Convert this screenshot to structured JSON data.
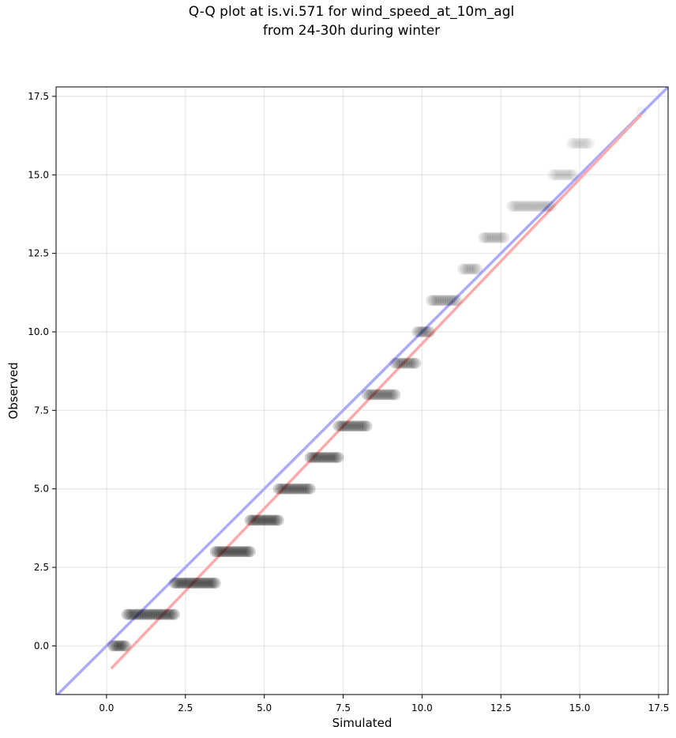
{
  "chart_data": {
    "type": "scatter",
    "title": [
      "Q-Q plot at is.vi.571 for wind_speed_at_10m_agl",
      "from 24-30h during winter"
    ],
    "xlabel": "Simulated",
    "ylabel": "Observed",
    "xlim": [
      -1.6,
      17.8
    ],
    "ylim": [
      -1.55,
      17.8
    ],
    "xticks": [
      0.0,
      2.5,
      5.0,
      7.5,
      10.0,
      12.5,
      15.0,
      17.5
    ],
    "yticks": [
      0.0,
      2.5,
      5.0,
      7.5,
      10.0,
      12.5,
      15.0,
      17.5
    ],
    "tick_labels": [
      "0.0",
      "2.5",
      "5.0",
      "7.5",
      "10.0",
      "12.5",
      "15.0",
      "17.5"
    ],
    "grid": true,
    "point_color": "#000000",
    "clusters": [
      {
        "observed": 0,
        "sim_min": 0.2,
        "sim_max": 0.6,
        "opacity": 0.55
      },
      {
        "observed": 1,
        "sim_min": 0.65,
        "sim_max": 2.15,
        "opacity": 0.55
      },
      {
        "observed": 2,
        "sim_min": 2.15,
        "sim_max": 3.45,
        "opacity": 0.55
      },
      {
        "observed": 3,
        "sim_min": 3.45,
        "sim_max": 4.55,
        "opacity": 0.55
      },
      {
        "observed": 4,
        "sim_min": 4.55,
        "sim_max": 5.45,
        "opacity": 0.55
      },
      {
        "observed": 5,
        "sim_min": 5.45,
        "sim_max": 6.45,
        "opacity": 0.5
      },
      {
        "observed": 6,
        "sim_min": 6.45,
        "sim_max": 7.35,
        "opacity": 0.5
      },
      {
        "observed": 7,
        "sim_min": 7.35,
        "sim_max": 8.25,
        "opacity": 0.45
      },
      {
        "observed": 8,
        "sim_min": 8.25,
        "sim_max": 9.15,
        "opacity": 0.4
      },
      {
        "observed": 9,
        "sim_min": 9.15,
        "sim_max": 9.8,
        "opacity": 0.4
      },
      {
        "observed": 10,
        "sim_min": 9.85,
        "sim_max": 10.25,
        "opacity": 0.35
      },
      {
        "observed": 11,
        "sim_min": 10.3,
        "sim_max": 11.1,
        "opacity": 0.3
      },
      {
        "observed": 12,
        "sim_min": 11.3,
        "sim_max": 11.75,
        "opacity": 0.25
      },
      {
        "observed": 13,
        "sim_min": 11.95,
        "sim_max": 12.6,
        "opacity": 0.22
      },
      {
        "observed": 14,
        "sim_min": 12.85,
        "sim_max": 14.1,
        "opacity": 0.18
      },
      {
        "observed": 15,
        "sim_min": 14.15,
        "sim_max": 14.8,
        "opacity": 0.15
      },
      {
        "observed": 16,
        "sim_min": 14.75,
        "sim_max": 15.3,
        "opacity": 0.12
      },
      {
        "observed": 17,
        "sim_min": 16.95,
        "sim_max": 16.95,
        "opacity": 0.12
      }
    ],
    "lines": [
      {
        "name": "identity",
        "color": "#aaaaff",
        "x": [
          -1.6,
          17.8
        ],
        "y": [
          -1.6,
          17.8
        ]
      },
      {
        "name": "fit",
        "color": "#ffaaaa",
        "x": [
          0.15,
          16.95
        ],
        "y": [
          -0.72,
          16.92
        ]
      }
    ]
  }
}
